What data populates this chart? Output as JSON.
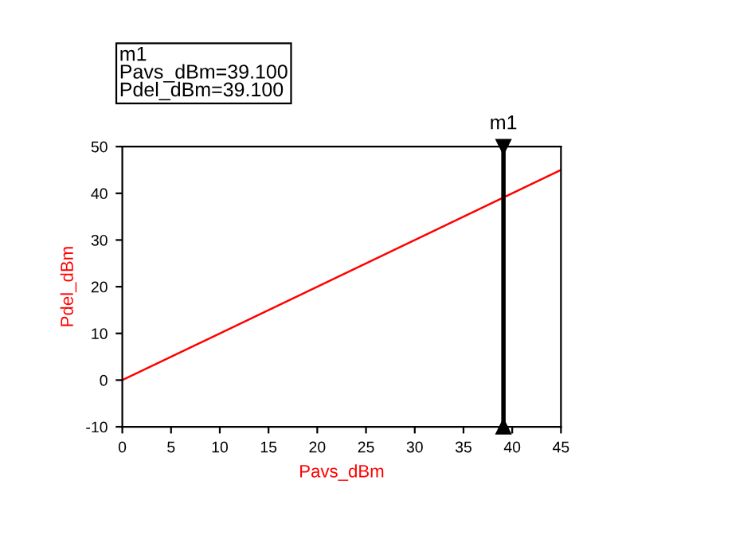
{
  "chart_data": {
    "type": "line",
    "xlabel": "Pavs_dBm",
    "ylabel": "Pdel_dBm",
    "x": [
      0,
      45
    ],
    "series": [
      {
        "color": "#ff0000",
        "values": [
          0,
          45
        ]
      }
    ],
    "xlim": [
      0,
      45
    ],
    "xticks": [
      0,
      5,
      10,
      15,
      20,
      25,
      30,
      35,
      40,
      45
    ],
    "ylim": [
      -10,
      50
    ],
    "yticks": [
      -10,
      0,
      10,
      20,
      30,
      40,
      50
    ],
    "grid": false,
    "marker": "none",
    "line_style": "solid",
    "ref_lines": [
      {
        "axis": "x",
        "value": 39.1,
        "label": "m1",
        "color": "#000000"
      }
    ],
    "annotations": [
      "m1\nPavs_dBm=39.100\nPdel_dBm=39.100"
    ]
  }
}
